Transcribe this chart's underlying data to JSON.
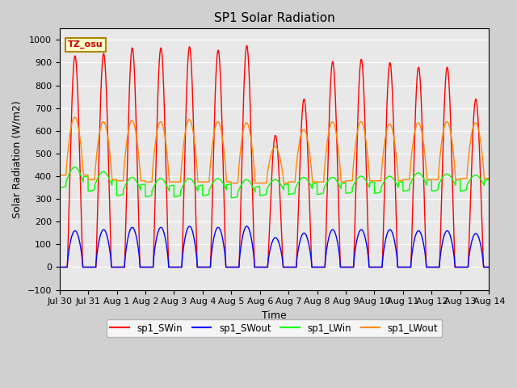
{
  "title": "SP1 Solar Radiation",
  "xlabel": "Time",
  "ylabel": "Solar Radiation (W/m2)",
  "ylim": [
    -100,
    1050
  ],
  "yticks": [
    -100,
    0,
    100,
    200,
    300,
    400,
    500,
    600,
    700,
    800,
    900,
    1000
  ],
  "tz_label": "TZ_osu",
  "num_days": 15,
  "dt_hours": 0.1,
  "colors": {
    "SWin": "#ff0000",
    "SWout": "#0000ff",
    "LWin": "#00ff00",
    "LWout": "#ff8800"
  },
  "legend_labels": [
    "sp1_SWin",
    "sp1_SWout",
    "sp1_LWin",
    "sp1_LWout"
  ],
  "tick_labels": [
    "Jul 30",
    "Jul 31",
    "Aug 1",
    "Aug 2",
    "Aug 3",
    "Aug 4",
    "Aug 5",
    "Aug 6",
    "Aug 7",
    "Aug 8",
    "Aug 9",
    "Aug 10",
    "Aug 11",
    "Aug 12",
    "Aug 13",
    "Aug 14"
  ],
  "SWin_peaks": [
    930,
    940,
    965,
    965,
    970,
    955,
    975,
    580,
    740,
    905,
    915,
    900,
    880,
    880,
    740
  ],
  "SWout_peaks": [
    160,
    165,
    175,
    175,
    180,
    175,
    180,
    130,
    150,
    165,
    165,
    165,
    160,
    160,
    148
  ],
  "LWin_base": [
    375,
    360,
    340,
    335,
    335,
    340,
    330,
    340,
    345,
    345,
    350,
    350,
    360,
    360,
    360
  ],
  "LWin_day_add": [
    65,
    60,
    55,
    55,
    55,
    50,
    55,
    45,
    50,
    50,
    50,
    50,
    55,
    50,
    45
  ],
  "LWout_night": [
    405,
    385,
    380,
    375,
    375,
    375,
    370,
    370,
    375,
    375,
    380,
    380,
    385,
    385,
    390
  ],
  "LWout_day_add": [
    255,
    255,
    265,
    265,
    275,
    265,
    265,
    160,
    230,
    265,
    260,
    250,
    250,
    255,
    245
  ],
  "sunrise": 5.5,
  "sunset": 20.0,
  "sw_sunrise": 6.5,
  "sw_sunset": 19.5
}
